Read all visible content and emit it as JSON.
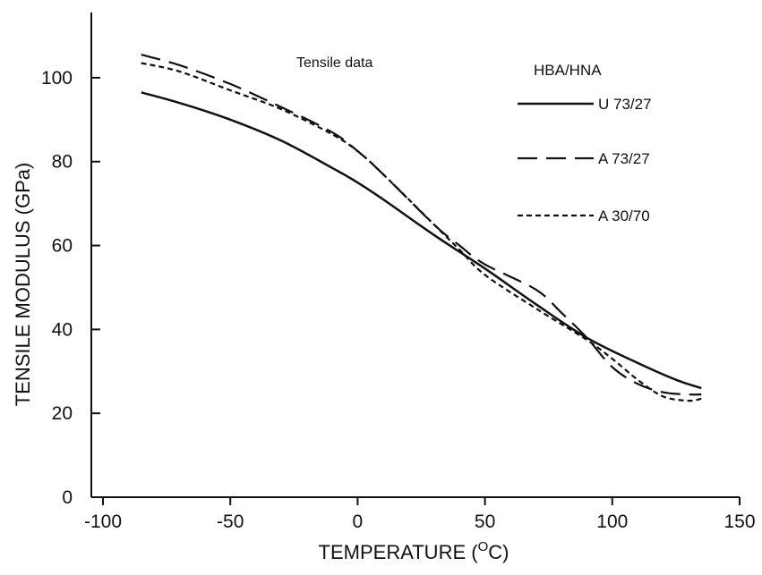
{
  "chart_data": {
    "type": "line",
    "annotation": "Tensile data",
    "legend_title": "HBA/HNA",
    "legend_position": "top-right",
    "xlabel_main": "TEMPERATURE (",
    "xlabel_unit_sup": "O",
    "xlabel_unit_end": "C)",
    "ylabel": "TENSILE MODULUS (GPa)",
    "xlim": [
      -100,
      150
    ],
    "ylim": [
      0,
      110
    ],
    "x_ticks": [
      -100,
      -50,
      0,
      50,
      100,
      150
    ],
    "x_tick_labels": [
      "-100",
      "-50",
      "0",
      "50",
      "100",
      "150"
    ],
    "y_ticks": [
      0,
      20,
      40,
      60,
      80,
      100
    ],
    "y_tick_labels": [
      "0",
      "20",
      "40",
      "60",
      "80",
      "100"
    ],
    "grid": false,
    "series": [
      {
        "name": "U 73/27",
        "style": "solid",
        "x": [
          -85,
          -70,
          -50,
          -30,
          -10,
          0,
          10,
          30,
          50,
          70,
          90,
          110,
          125,
          135
        ],
        "y": [
          96.5,
          94,
          90,
          85,
          78.5,
          75,
          71,
          62.5,
          54.5,
          46,
          38,
          32,
          28,
          26
        ]
      },
      {
        "name": "A 73/27",
        "style": "dashed",
        "x": [
          -85,
          -70,
          -50,
          -30,
          -10,
          0,
          10,
          30,
          40,
          50,
          70,
          80,
          90,
          100,
          110,
          120,
          130,
          135
        ],
        "y": [
          105.5,
          103,
          98.5,
          93,
          87,
          82.5,
          77,
          65,
          60,
          55.5,
          49.5,
          44,
          38,
          31,
          27,
          25,
          24.5,
          24.5
        ]
      },
      {
        "name": "A 30/70",
        "style": "dotted",
        "x": [
          -85,
          -70,
          -50,
          -30,
          -10,
          0,
          10,
          30,
          40,
          50,
          70,
          90,
          100,
          110,
          120,
          130,
          135
        ],
        "y": [
          103.5,
          101.5,
          97,
          92.5,
          86.5,
          82.5,
          77,
          65,
          59,
          53,
          45,
          37.5,
          33,
          28,
          24,
          23,
          23.5
        ]
      }
    ]
  }
}
